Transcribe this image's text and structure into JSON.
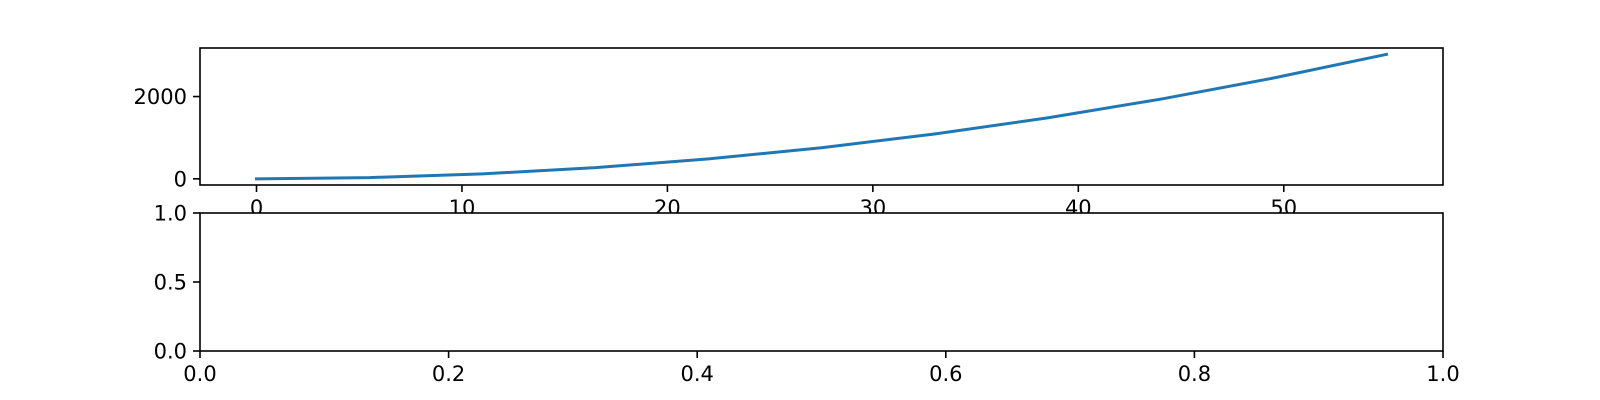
{
  "chart_data": [
    {
      "type": "line",
      "title": "",
      "xlabel": "",
      "ylabel": "",
      "xlim": [
        -2.75,
        57.75
      ],
      "ylim": [
        -150,
        3180
      ],
      "xticks": [
        0,
        10,
        20,
        30,
        40,
        50
      ],
      "xtick_labels": [
        "0",
        "10",
        "20",
        "30",
        "40",
        "50"
      ],
      "yticks": [
        0,
        2000
      ],
      "ytick_labels": [
        "0",
        "2000"
      ],
      "grid": false,
      "legend": "none",
      "series": [
        {
          "color": "#1f77b4",
          "x": [
            0,
            5.5,
            11,
            16.5,
            22,
            27.5,
            33,
            38.5,
            44,
            49.5,
            55
          ],
          "y": [
            0,
            30,
            121,
            272,
            484,
            756,
            1089,
            1482,
            1936,
            2450,
            3025
          ]
        }
      ]
    },
    {
      "type": "line",
      "title": "",
      "xlabel": "",
      "ylabel": "",
      "xlim": [
        0,
        1
      ],
      "ylim": [
        0,
        1
      ],
      "xticks": [
        0,
        0.2,
        0.4,
        0.6,
        0.8,
        1.0
      ],
      "xtick_labels": [
        "0.0",
        "0.2",
        "0.4",
        "0.6",
        "0.8",
        "1.0"
      ],
      "yticks": [
        0,
        0.5,
        1.0
      ],
      "ytick_labels": [
        "0.0",
        "0.5",
        "1.0"
      ],
      "grid": false,
      "legend": "none",
      "series": []
    }
  ]
}
